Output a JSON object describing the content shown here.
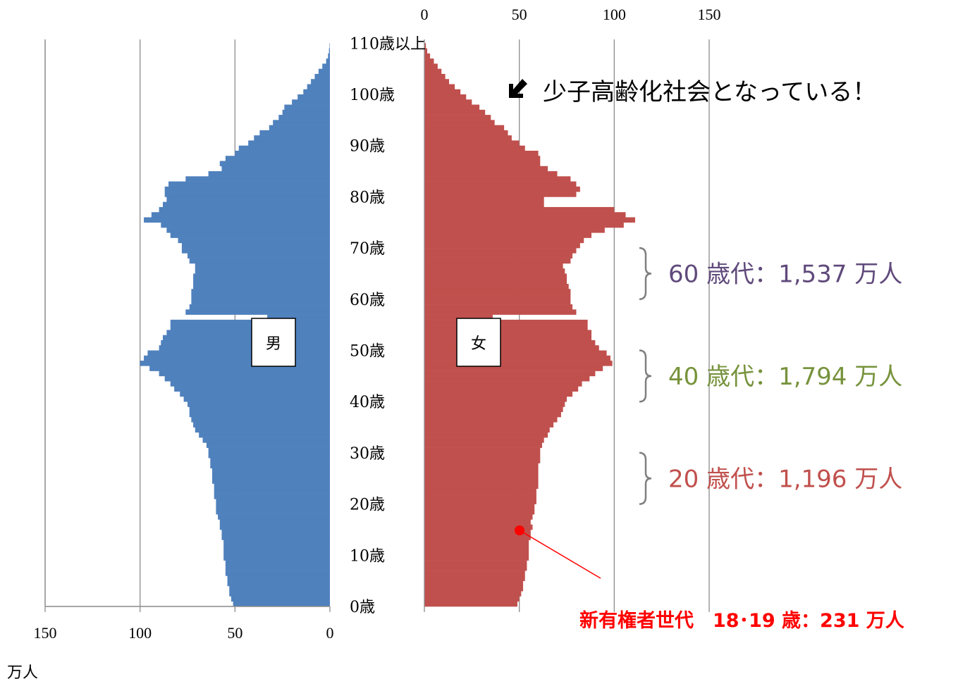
{
  "chart_data": {
    "type": "bar",
    "subtype": "population-pyramid",
    "unit_label": "万人",
    "x_ticks_left": [
      "150",
      "100",
      "50",
      "0"
    ],
    "x_ticks_right": [
      "0",
      "50",
      "100",
      "150"
    ],
    "xlim": [
      0,
      150
    ],
    "grid": true,
    "age_labels": [
      "0歳",
      "10歳",
      "20歳",
      "30歳",
      "40歳",
      "50歳",
      "60歳",
      "70歳",
      "80歳",
      "90歳",
      "100歳",
      "110歳以上"
    ],
    "age_label_values": [
      0,
      10,
      20,
      30,
      40,
      50,
      60,
      70,
      80,
      90,
      100,
      110
    ],
    "series": [
      {
        "name": "男",
        "color": "#4f81bd",
        "ages": [
          0,
          1,
          2,
          3,
          4,
          5,
          6,
          7,
          8,
          9,
          10,
          11,
          12,
          13,
          14,
          15,
          16,
          17,
          18,
          19,
          20,
          21,
          22,
          23,
          24,
          25,
          26,
          27,
          28,
          29,
          30,
          31,
          32,
          33,
          34,
          35,
          36,
          37,
          38,
          39,
          40,
          41,
          42,
          43,
          44,
          45,
          46,
          47,
          48,
          49,
          50,
          51,
          52,
          53,
          54,
          55,
          56,
          57,
          58,
          59,
          60,
          61,
          62,
          63,
          64,
          65,
          66,
          67,
          68,
          69,
          70,
          71,
          72,
          73,
          74,
          75,
          76,
          77,
          78,
          79,
          80,
          81,
          82,
          83,
          84,
          85,
          86,
          87,
          88,
          89,
          90,
          91,
          92,
          93,
          94,
          95,
          96,
          97,
          98,
          99,
          100,
          101,
          102,
          103,
          104,
          105,
          106,
          107,
          108,
          109
        ],
        "values": [
          51,
          52,
          53,
          53,
          54,
          54,
          55,
          55,
          55,
          56,
          56,
          56,
          56,
          57,
          57,
          58,
          58,
          59,
          60,
          60,
          60,
          61,
          61,
          61,
          62,
          62,
          62,
          63,
          63,
          64,
          64,
          65,
          67,
          69,
          71,
          72,
          73,
          74,
          74,
          75,
          77,
          79,
          82,
          84,
          87,
          90,
          95,
          100,
          98,
          96,
          90,
          89,
          88,
          86,
          84,
          84,
          33,
          76,
          74,
          73,
          73,
          73,
          72,
          72,
          72,
          71,
          71,
          74,
          75,
          78,
          78,
          80,
          84,
          86,
          89,
          98,
          94,
          90,
          88,
          86,
          87,
          87,
          85,
          76,
          64,
          57,
          58,
          55,
          50,
          48,
          43,
          40,
          37,
          32,
          30,
          27,
          25,
          24,
          20,
          17,
          14,
          12,
          10,
          8,
          6,
          4,
          2,
          1,
          0.5,
          0.2
        ]
      },
      {
        "name": "女",
        "color": "#c0504d",
        "ages": [
          0,
          1,
          2,
          3,
          4,
          5,
          6,
          7,
          8,
          9,
          10,
          11,
          12,
          13,
          14,
          15,
          16,
          17,
          18,
          19,
          20,
          21,
          22,
          23,
          24,
          25,
          26,
          27,
          28,
          29,
          30,
          31,
          32,
          33,
          34,
          35,
          36,
          37,
          38,
          39,
          40,
          41,
          42,
          43,
          44,
          45,
          46,
          47,
          48,
          49,
          50,
          51,
          52,
          53,
          54,
          55,
          56,
          57,
          58,
          59,
          60,
          61,
          62,
          63,
          64,
          65,
          66,
          67,
          68,
          69,
          70,
          71,
          72,
          73,
          74,
          75,
          76,
          77,
          78,
          79,
          80,
          81,
          82,
          83,
          84,
          85,
          86,
          87,
          88,
          89,
          90,
          91,
          92,
          93,
          94,
          95,
          96,
          97,
          98,
          99,
          100,
          101,
          102,
          103,
          104,
          105,
          106,
          107,
          108,
          109
        ],
        "values": [
          49,
          50,
          51,
          52,
          52,
          53,
          53,
          54,
          54,
          55,
          55,
          55,
          55,
          56,
          56,
          57,
          56,
          57,
          58,
          58,
          59,
          59,
          59,
          60,
          60,
          60,
          60,
          60,
          61,
          61,
          61,
          62,
          63,
          65,
          66,
          68,
          70,
          72,
          73,
          74,
          75,
          78,
          81,
          83,
          87,
          90,
          94,
          99,
          98,
          96,
          92,
          90,
          88,
          88,
          86,
          86,
          36,
          80,
          78,
          77,
          77,
          77,
          76,
          75,
          75,
          74,
          73,
          77,
          78,
          80,
          82,
          84,
          88,
          95,
          105,
          111,
          106,
          100,
          63,
          63,
          80,
          82,
          80,
          77,
          70,
          65,
          61,
          61,
          60,
          53,
          50,
          46,
          44,
          42,
          37,
          35,
          32,
          29,
          25,
          22,
          19,
          16,
          13,
          11,
          9,
          7,
          5,
          3,
          1.5,
          0.8
        ]
      }
    ],
    "annotations": {
      "headline": "少子高齢化社会となっている！",
      "groups": [
        {
          "text": "60 歳代：1,537 万人",
          "color": "#604a7b",
          "age_from": 60,
          "age_to": 69
        },
        {
          "text": "40 歳代：1,794 万人",
          "color": "#77933c",
          "age_from": 40,
          "age_to": 49
        },
        {
          "text": "20 歳代：1,196 万人",
          "color": "#c0504d",
          "age_from": 20,
          "age_to": 29
        }
      ],
      "new_voters": {
        "text": "新有権者世代　18･19 歳：231 万人",
        "color": "#ff0000",
        "age": 18.5
      }
    }
  }
}
